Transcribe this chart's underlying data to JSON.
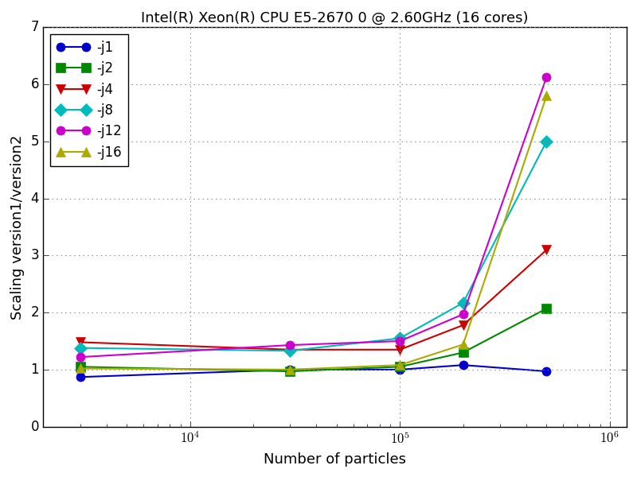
{
  "title": "Intel(R) Xeon(R) CPU E5-2670 0 @ 2.60GHz (16 cores)",
  "xlabel": "Number of particles",
  "ylabel": "Scaling version1/version2",
  "xlim": [
    2000,
    1200000
  ],
  "ylim": [
    0,
    7
  ],
  "yticks": [
    0,
    1,
    2,
    3,
    4,
    5,
    6,
    7
  ],
  "series": [
    {
      "label": "-j1",
      "color": "#0000cc",
      "marker": "o",
      "x": [
        3000,
        30000,
        100000,
        200000,
        500000
      ],
      "y": [
        0.87,
        1.0,
        1.0,
        1.08,
        0.97
      ]
    },
    {
      "label": "-j2",
      "color": "#008800",
      "marker": "s",
      "x": [
        3000,
        30000,
        100000,
        200000,
        500000
      ],
      "y": [
        1.05,
        0.97,
        1.05,
        1.3,
        2.07
      ]
    },
    {
      "label": "-j4",
      "color": "#cc0000",
      "marker": "v",
      "x": [
        3000,
        30000,
        100000,
        200000,
        500000
      ],
      "y": [
        1.48,
        1.35,
        1.35,
        1.78,
        3.1
      ]
    },
    {
      "label": "-j8",
      "color": "#00bbbb",
      "marker": "D",
      "x": [
        3000,
        30000,
        100000,
        200000,
        500000
      ],
      "y": [
        1.38,
        1.33,
        1.55,
        2.17,
        5.0
      ]
    },
    {
      "label": "-j12",
      "color": "#cc00cc",
      "marker": "o",
      "x": [
        3000,
        30000,
        100000,
        200000,
        500000
      ],
      "y": [
        1.22,
        1.43,
        1.5,
        1.97,
        6.13
      ]
    },
    {
      "label": "-j16",
      "color": "#aaaa00",
      "marker": "^",
      "x": [
        3000,
        30000,
        100000,
        200000,
        500000
      ],
      "y": [
        1.02,
        1.0,
        1.08,
        1.44,
        5.8
      ]
    }
  ],
  "figsize": [
    8.0,
    6.0
  ],
  "dpi": 100,
  "background_color": "#ffffff",
  "grid_color": "#888888",
  "title_fontsize": 13,
  "axis_label_fontsize": 13,
  "tick_fontsize": 12,
  "legend_fontsize": 12,
  "markersize": 8,
  "linewidth": 1.5
}
